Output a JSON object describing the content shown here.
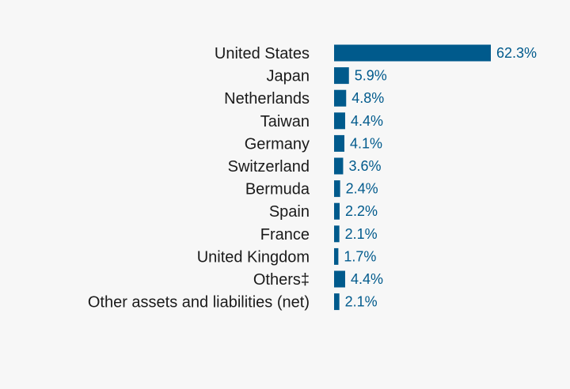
{
  "chart_data": {
    "type": "bar",
    "orientation": "horizontal",
    "categories": [
      "United States",
      "Japan",
      "Netherlands",
      "Taiwan",
      "Germany",
      "Switzerland",
      "Bermuda",
      "Spain",
      "France",
      "United Kingdom",
      "Others‡",
      "Other assets and liabilities (net)"
    ],
    "values": [
      62.3,
      5.9,
      4.8,
      4.4,
      4.1,
      3.6,
      2.4,
      2.2,
      2.1,
      1.7,
      4.4,
      2.1
    ],
    "value_labels": [
      "62.3%",
      "5.9%",
      "4.8%",
      "4.4%",
      "4.1%",
      "3.6%",
      "2.4%",
      "2.2%",
      "2.1%",
      "1.7%",
      "4.4%",
      "2.1%"
    ],
    "title": "",
    "xlabel": "",
    "ylabel": "",
    "grid": false,
    "bar_color": "#005a8c",
    "label_color": "#005a8c"
  }
}
